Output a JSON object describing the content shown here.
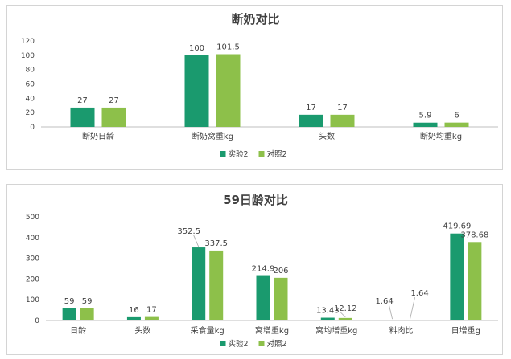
{
  "colors": {
    "series1": "#1a9a6e",
    "series2": "#8dc04a",
    "grid": "#d9d9d9",
    "axis": "#bfbfbf",
    "text": "#404040"
  },
  "chart_data": [
    {
      "type": "bar",
      "title": "断奶对比",
      "categories": [
        "断奶日龄",
        "断奶窝重kg",
        "头数",
        "断奶均重kg"
      ],
      "series": [
        {
          "name": "实验2",
          "values": [
            27,
            100,
            17,
            5.9
          ],
          "labels": [
            "27",
            "100",
            "17",
            "5.9"
          ]
        },
        {
          "name": "对照2",
          "values": [
            27,
            101.5,
            17,
            6
          ],
          "labels": [
            "27",
            "101.5",
            "17",
            "6"
          ]
        }
      ],
      "ylim": [
        0,
        120
      ],
      "yticks": [
        0,
        20,
        40,
        60,
        80,
        100,
        120
      ],
      "grid": false,
      "legend": "bottom"
    },
    {
      "type": "bar",
      "title": "59日龄对比",
      "categories": [
        "日龄",
        "头数",
        "采食量kg",
        "窝增重kg",
        "窝均增重kg",
        "料肉比",
        "日增重g"
      ],
      "series": [
        {
          "name": "实验2",
          "values": [
            59,
            16,
            352.5,
            214.9,
            13.43,
            1.64,
            419.69
          ],
          "labels": [
            "59",
            "16",
            "352.5",
            "214.9",
            "13.43",
            "1.64",
            "419.69"
          ]
        },
        {
          "name": "对照2",
          "values": [
            59,
            17,
            337.5,
            206,
            12.12,
            1.64,
            378.68
          ],
          "labels": [
            "59",
            "17",
            "337.5",
            "206",
            "12.12",
            "1.64",
            "378.68"
          ]
        }
      ],
      "ylim": [
        0,
        500
      ],
      "yticks": [
        0,
        100,
        200,
        300,
        400,
        500
      ],
      "grid": false,
      "legend": "bottom"
    }
  ]
}
